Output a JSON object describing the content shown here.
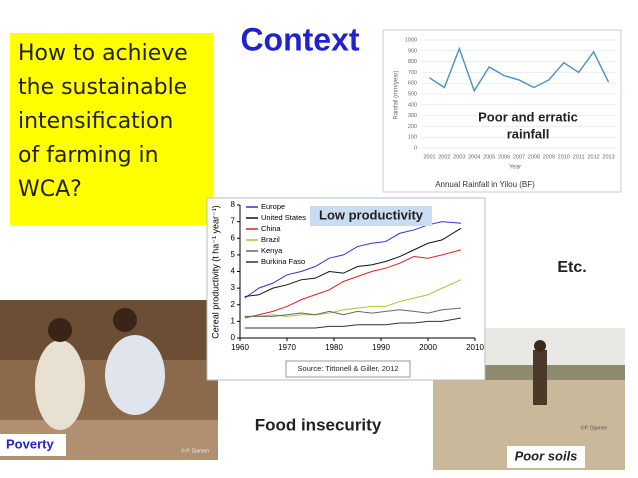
{
  "title": "Context",
  "question": [
    "How to achieve",
    "the sustainable",
    "intensification",
    "of farming in",
    "WCA?"
  ],
  "labels": {
    "rainfall_note": [
      "Poor and erratic",
      "rainfall"
    ],
    "productivity_note": "Low productivity",
    "etc": "Etc.",
    "food": "Food insecurity",
    "poverty": "Poverty",
    "soils": "Poor soils",
    "credit_left": "© P. Djamen",
    "credit_right": "©P. Djamen"
  },
  "chart_data": [
    {
      "type": "line",
      "caption": "Annual Rainfall in Yilou (BF)",
      "x_label": "Year",
      "y_label": "Rainfall (mm/year)",
      "categories": [
        "2001",
        "2002",
        "2003",
        "2004",
        "2005",
        "2006",
        "2007",
        "2008",
        "2009",
        "2010",
        "2011",
        "2012",
        "2013"
      ],
      "values": [
        650,
        560,
        920,
        530,
        750,
        670,
        630,
        560,
        630,
        790,
        700,
        890,
        610
      ],
      "color": "#4a90c4",
      "ylim": [
        0,
        1000
      ],
      "yticks": [
        0,
        100,
        200,
        300,
        400,
        500,
        600,
        700,
        800,
        900,
        1000
      ],
      "grid": true
    },
    {
      "type": "line",
      "source": "Source: Tittonell & Giller, 2012",
      "y_label": "Cereal productivity (t ha⁻¹ year⁻¹)",
      "x": [
        1961,
        1964,
        1967,
        1970,
        1973,
        1976,
        1979,
        1982,
        1985,
        1988,
        1991,
        1994,
        1997,
        2000,
        2003,
        2007
      ],
      "xlim": [
        1960,
        2010
      ],
      "xticks": [
        1960,
        1970,
        1980,
        1990,
        2000,
        2010
      ],
      "ylim": [
        0,
        8
      ],
      "yticks": [
        0,
        1,
        2,
        3,
        4,
        5,
        6,
        7,
        8
      ],
      "grid": false,
      "series": [
        {
          "name": "Europe",
          "color": "#3333cc",
          "values": [
            2.4,
            3.0,
            3.3,
            3.8,
            4.0,
            4.3,
            4.8,
            5.0,
            5.5,
            5.7,
            5.8,
            6.3,
            6.5,
            6.8,
            7.0,
            6.9
          ]
        },
        {
          "name": "United States",
          "color": "#111111",
          "values": [
            2.5,
            2.6,
            3.0,
            3.2,
            3.5,
            3.6,
            4.0,
            3.9,
            4.3,
            4.4,
            4.6,
            4.9,
            5.3,
            5.7,
            5.9,
            6.6
          ]
        },
        {
          "name": "China",
          "color": "#e02020",
          "values": [
            1.2,
            1.4,
            1.6,
            1.9,
            2.3,
            2.6,
            2.9,
            3.4,
            3.7,
            4.0,
            4.2,
            4.5,
            4.9,
            4.8,
            5.0,
            5.3
          ]
        },
        {
          "name": "Brazil",
          "color": "#9acd32",
          "values": [
            1.3,
            1.3,
            1.4,
            1.3,
            1.4,
            1.4,
            1.5,
            1.7,
            1.8,
            1.9,
            1.9,
            2.2,
            2.4,
            2.6,
            3.0,
            3.5
          ]
        },
        {
          "name": "Kenya",
          "color": "#666666",
          "values": [
            1.3,
            1.3,
            1.3,
            1.4,
            1.5,
            1.4,
            1.6,
            1.4,
            1.6,
            1.5,
            1.6,
            1.7,
            1.6,
            1.5,
            1.7,
            1.8
          ]
        },
        {
          "name": "Burkina Faso",
          "color": "#333333",
          "values": [
            0.6,
            0.6,
            0.6,
            0.6,
            0.6,
            0.6,
            0.7,
            0.7,
            0.8,
            0.8,
            0.8,
            0.9,
            0.9,
            1.0,
            1.0,
            1.2
          ]
        }
      ]
    }
  ]
}
